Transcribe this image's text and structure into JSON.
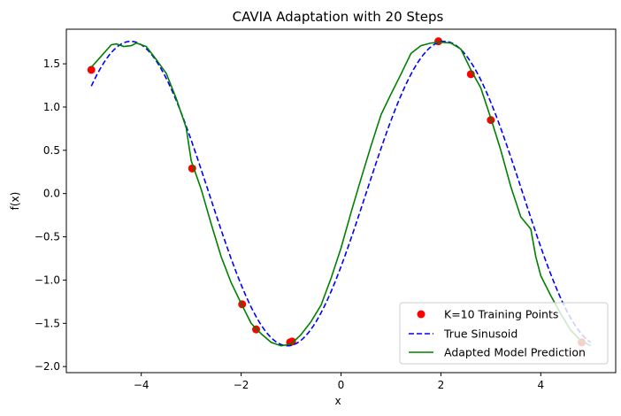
{
  "chart_data": {
    "type": "line",
    "title": "CAVIA Adaptation with 20 Steps",
    "xlabel": "x",
    "ylabel": "f(x)",
    "xlim": [
      -5.5,
      5.5
    ],
    "ylim": [
      -2.07,
      1.9
    ],
    "xticks": [
      -4,
      -2,
      0,
      2,
      4
    ],
    "xtick_labels": [
      "−4",
      "−2",
      "0",
      "2",
      "4"
    ],
    "yticks": [
      -2.0,
      -1.5,
      -1.0,
      -0.5,
      0.0,
      0.5,
      1.0,
      1.5
    ],
    "ytick_labels": [
      "−2.0",
      "−1.5",
      "−1.0",
      "−0.5",
      "0.0",
      "0.5",
      "1.0",
      "1.5"
    ],
    "grid": false,
    "legend_position": "lower-right",
    "series": [
      {
        "name": "K=10 Training Points",
        "kind": "scatter",
        "color": "#ff0000",
        "points": [
          [
            -5.0,
            1.43
          ],
          [
            -2.98,
            0.29
          ],
          [
            -1.98,
            -1.28
          ],
          [
            -1.7,
            -1.57
          ],
          [
            -1.02,
            -1.72
          ],
          [
            -0.98,
            -1.71
          ],
          [
            1.95,
            1.76
          ],
          [
            2.6,
            1.38
          ],
          [
            3.0,
            0.85
          ],
          [
            4.82,
            -1.72
          ]
        ]
      },
      {
        "name": "True Sinusoid",
        "kind": "line",
        "style": "dashed",
        "color": "#0000ff",
        "amplitude": 1.76,
        "phase": 0.5,
        "x_range": [
          -5.0,
          5.0
        ]
      },
      {
        "name": "Adapted Model Prediction",
        "kind": "line",
        "style": "solid",
        "color": "#008000",
        "points": [
          [
            -5.0,
            1.46
          ],
          [
            -4.8,
            1.59
          ],
          [
            -4.6,
            1.72
          ],
          [
            -4.5,
            1.73
          ],
          [
            -4.35,
            1.7
          ],
          [
            -4.2,
            1.71
          ],
          [
            -4.1,
            1.74
          ],
          [
            -3.9,
            1.7
          ],
          [
            -3.7,
            1.55
          ],
          [
            -3.5,
            1.39
          ],
          [
            -3.3,
            1.1
          ],
          [
            -3.1,
            0.76
          ],
          [
            -3.0,
            0.38
          ],
          [
            -2.8,
            0.05
          ],
          [
            -2.6,
            -0.35
          ],
          [
            -2.4,
            -0.73
          ],
          [
            -2.2,
            -1.03
          ],
          [
            -2.0,
            -1.27
          ],
          [
            -1.8,
            -1.5
          ],
          [
            -1.6,
            -1.62
          ],
          [
            -1.4,
            -1.72
          ],
          [
            -1.2,
            -1.76
          ],
          [
            -1.0,
            -1.74
          ],
          [
            -0.8,
            -1.63
          ],
          [
            -0.6,
            -1.48
          ],
          [
            -0.4,
            -1.29
          ],
          [
            -0.2,
            -0.98
          ],
          [
            0.0,
            -0.63
          ],
          [
            0.2,
            -0.22
          ],
          [
            0.4,
            0.17
          ],
          [
            0.6,
            0.55
          ],
          [
            0.8,
            0.91
          ],
          [
            1.0,
            1.15
          ],
          [
            1.2,
            1.38
          ],
          [
            1.4,
            1.62
          ],
          [
            1.6,
            1.71
          ],
          [
            1.8,
            1.74
          ],
          [
            2.0,
            1.75
          ],
          [
            2.2,
            1.74
          ],
          [
            2.4,
            1.67
          ],
          [
            2.6,
            1.43
          ],
          [
            2.8,
            1.22
          ],
          [
            3.0,
            0.87
          ],
          [
            3.2,
            0.5
          ],
          [
            3.4,
            0.08
          ],
          [
            3.6,
            -0.27
          ],
          [
            3.8,
            -0.41
          ],
          [
            3.9,
            -0.73
          ],
          [
            4.0,
            -0.95
          ],
          [
            4.2,
            -1.18
          ],
          [
            4.4,
            -1.39
          ],
          [
            4.6,
            -1.58
          ],
          [
            4.8,
            -1.7
          ],
          [
            5.0,
            -1.76
          ]
        ]
      }
    ]
  }
}
